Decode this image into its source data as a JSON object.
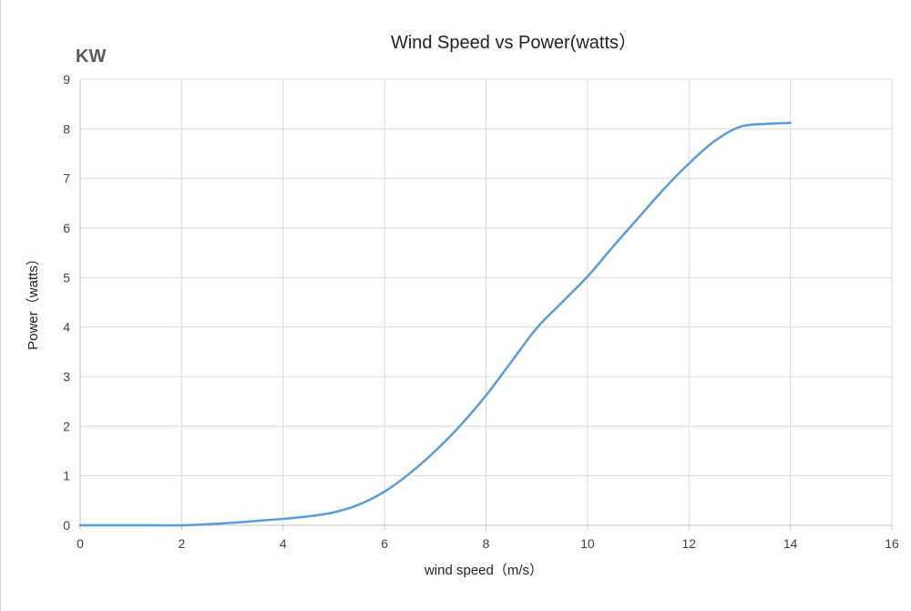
{
  "chart_data": {
    "type": "line",
    "title": "Wind Speed vs Power(watts）",
    "unit_label": "KW",
    "xlabel": "wind speed（m/s）",
    "ylabel": "Power（watts）",
    "xlim": [
      0,
      16
    ],
    "ylim": [
      0,
      9
    ],
    "xticks": [
      0,
      2,
      4,
      6,
      8,
      10,
      12,
      14,
      16
    ],
    "yticks": [
      0,
      1,
      2,
      3,
      4,
      5,
      6,
      7,
      8,
      9
    ],
    "grid": true,
    "legend": "none",
    "series": [
      {
        "color": "#5b9bd5",
        "x": [
          0,
          1,
          2,
          2.5,
          3,
          3.5,
          4,
          4.5,
          5,
          5.5,
          6,
          6.5,
          7,
          7.5,
          8,
          8.5,
          9,
          9.5,
          10,
          10.5,
          11,
          11.5,
          12,
          12.5,
          13,
          13.5,
          14
        ],
        "y": [
          0,
          0,
          0,
          0.02,
          0.05,
          0.09,
          0.13,
          0.18,
          0.26,
          0.42,
          0.68,
          1.05,
          1.5,
          2.02,
          2.62,
          3.3,
          3.98,
          4.5,
          5.02,
          5.62,
          6.2,
          6.78,
          7.3,
          7.75,
          8.04,
          8.1,
          8.12
        ]
      }
    ]
  }
}
